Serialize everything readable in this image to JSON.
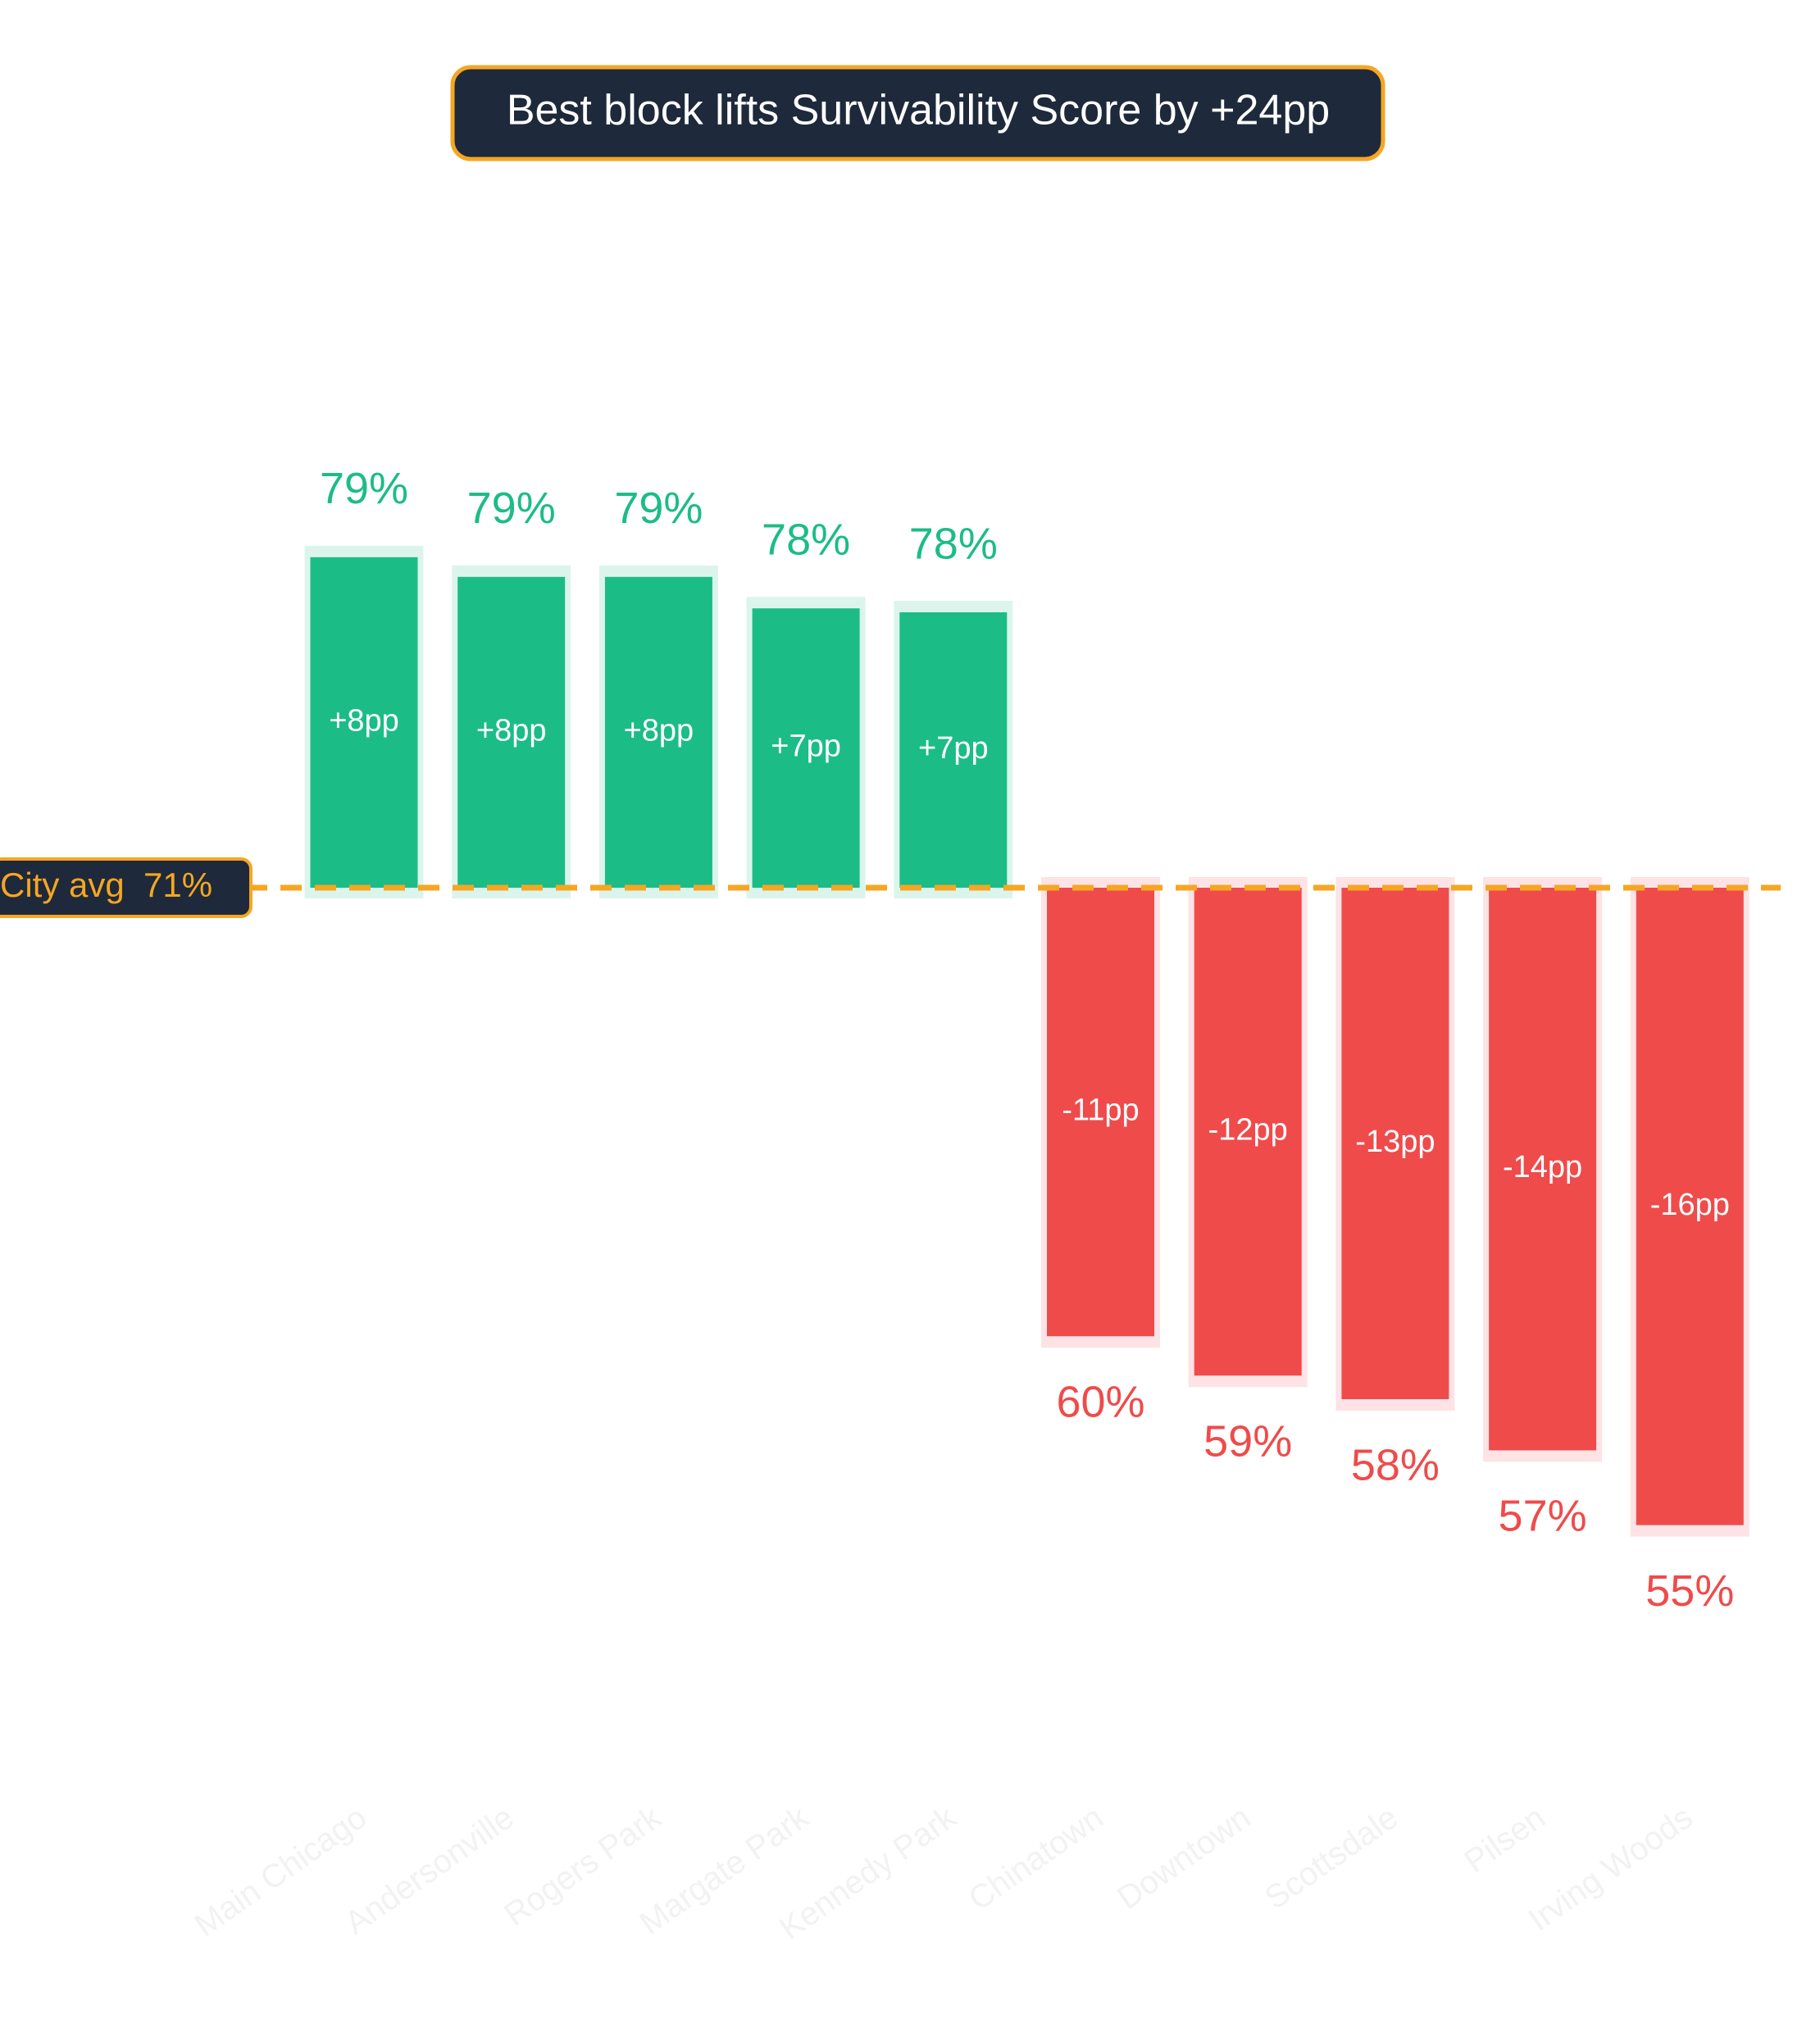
{
  "chart_data": {
    "type": "diverging_bar",
    "title": "Best block lifts Survivability Score by +24pp",
    "reference_line": {
      "value": 71,
      "label": "City avg  71%"
    },
    "categories": [
      "Main Chicago",
      "Andersonville",
      "Rogers Park",
      "Margate Park",
      "Kennedy Park",
      "Chinatown",
      "Downtown",
      "Scottsdale",
      "Pilsen",
      "Irving Woods"
    ],
    "values": [
      79.4,
      78.9,
      78.9,
      78.1,
      78.0,
      59.6,
      58.6,
      58.0,
      56.7,
      54.8
    ],
    "value_labels": [
      "79%",
      "79%",
      "79%",
      "78%",
      "78%",
      "60%",
      "59%",
      "58%",
      "57%",
      "55%"
    ],
    "deltas": [
      8.4,
      7.9,
      7.9,
      7.1,
      7.0,
      -11.4,
      -12.4,
      -13.0,
      -14.3,
      -16.2
    ],
    "delta_labels": [
      "+8pp",
      "+8pp",
      "+8pp",
      "+7pp",
      "+7pp",
      "-11pp",
      "-12pp",
      "-13pp",
      "-14pp",
      "-16pp"
    ],
    "positive_color": "#1cbc87",
    "negative_color": "#ef4b4b",
    "reference_color": "#f5a623"
  }
}
